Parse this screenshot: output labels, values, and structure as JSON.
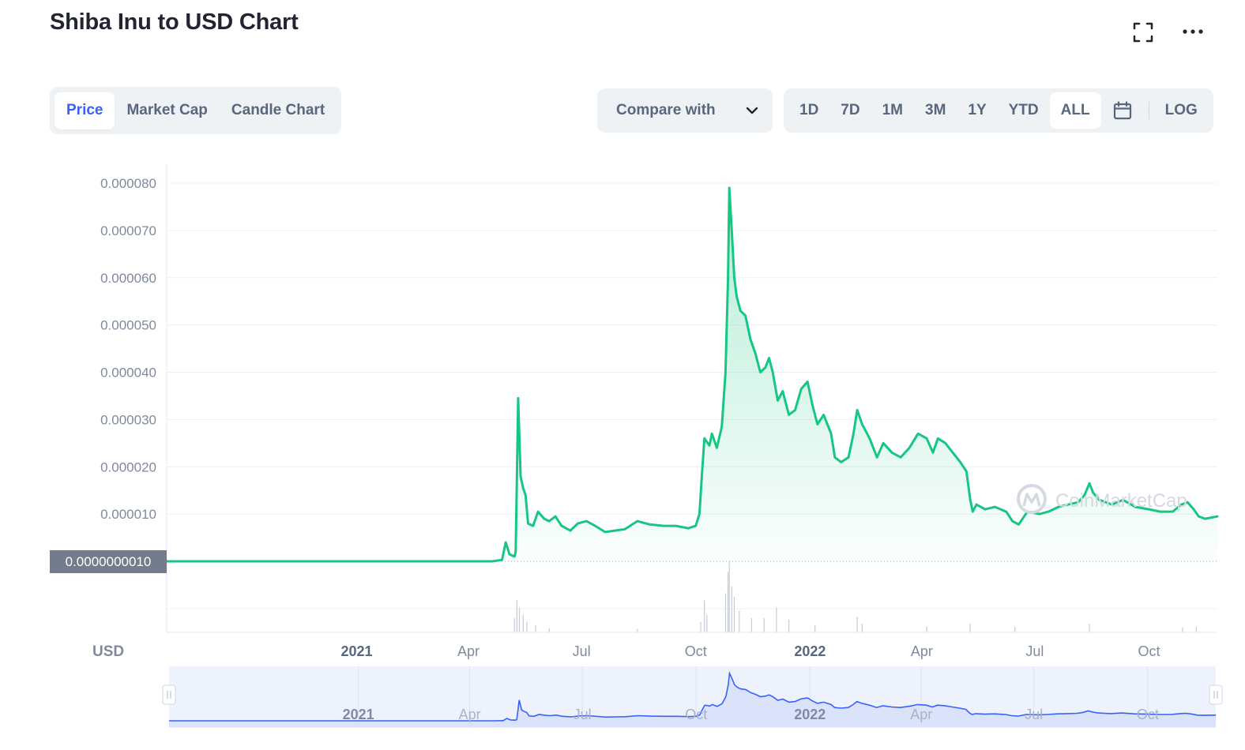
{
  "header": {
    "title": "Shiba Inu to USD Chart"
  },
  "toolbar": {
    "fullscreen_icon": "fullscreen-icon",
    "more_icon": "more-horizontal-icon",
    "type_tabs": [
      {
        "label": "Price",
        "active": true
      },
      {
        "label": "Market Cap",
        "active": false
      },
      {
        "label": "Candle Chart",
        "active": false
      }
    ],
    "compare_label": "Compare with",
    "compare_icon": "chevron-down-icon",
    "range_tabs": [
      {
        "label": "1D",
        "active": false
      },
      {
        "label": "7D",
        "active": false
      },
      {
        "label": "1M",
        "active": false
      },
      {
        "label": "3M",
        "active": false
      },
      {
        "label": "1Y",
        "active": false
      },
      {
        "label": "YTD",
        "active": false
      },
      {
        "label": "ALL",
        "active": true
      }
    ],
    "calendar_icon": "calendar-icon",
    "log_label": "LOG"
  },
  "chart_data": {
    "type": "area",
    "currency_label": "USD",
    "current_price_label": "0.0000000010",
    "watermark": "CoinMarketCap",
    "y_ticks": [
      "0.000080",
      "0.000070",
      "0.000060",
      "0.000050",
      "0.000040",
      "0.000030",
      "0.000020",
      "0.000010"
    ],
    "ylim": [
      0,
      8e-05
    ],
    "xlim": [
      "2020-08-01",
      "2022-11-25"
    ],
    "x_ticks": [
      {
        "label": "2021",
        "date": "2021-01-01",
        "year": true
      },
      {
        "label": "Apr",
        "date": "2021-04-01",
        "year": false
      },
      {
        "label": "Jul",
        "date": "2021-07-01",
        "year": false
      },
      {
        "label": "Oct",
        "date": "2021-10-01",
        "year": false
      },
      {
        "label": "2022",
        "date": "2022-01-01",
        "year": true
      },
      {
        "label": "Apr",
        "date": "2022-04-01",
        "year": false
      },
      {
        "label": "Jul",
        "date": "2022-07-01",
        "year": false
      },
      {
        "label": "Oct",
        "date": "2022-10-01",
        "year": false
      }
    ],
    "colors": {
      "line": "#16c784",
      "navigator_line": "#3861fb",
      "navigator_bg": "#eef2fd",
      "volume": "#c6cbd6"
    },
    "series": [
      {
        "values": [
          [
            "2020-08-01",
            0.0
          ],
          [
            "2021-04-20",
            1e-09
          ],
          [
            "2021-04-28",
            3e-07
          ],
          [
            "2021-05-01",
            4e-06
          ],
          [
            "2021-05-04",
            1.5e-06
          ],
          [
            "2021-05-08",
            1e-06
          ],
          [
            "2021-05-09",
            2e-06
          ],
          [
            "2021-05-10",
            1.75e-05
          ],
          [
            "2021-05-11",
            3.45e-05
          ],
          [
            "2021-05-12",
            2.6e-05
          ],
          [
            "2021-05-13",
            1.8e-05
          ],
          [
            "2021-05-15",
            1.55e-05
          ],
          [
            "2021-05-17",
            1.4e-05
          ],
          [
            "2021-05-19",
            8e-06
          ],
          [
            "2021-05-23",
            7.5e-06
          ],
          [
            "2021-05-27",
            1.05e-05
          ],
          [
            "2021-06-01",
            9e-06
          ],
          [
            "2021-06-05",
            8.5e-06
          ],
          [
            "2021-06-10",
            9.5e-06
          ],
          [
            "2021-06-15",
            7.5e-06
          ],
          [
            "2021-06-22",
            6.5e-06
          ],
          [
            "2021-06-28",
            8e-06
          ],
          [
            "2021-07-05",
            8.5e-06
          ],
          [
            "2021-07-12",
            7.5e-06
          ],
          [
            "2021-07-20",
            6.2e-06
          ],
          [
            "2021-07-28",
            6.5e-06
          ],
          [
            "2021-08-05",
            6.8e-06
          ],
          [
            "2021-08-15",
            8.5e-06
          ],
          [
            "2021-08-25",
            7.8e-06
          ],
          [
            "2021-09-05",
            7.5e-06
          ],
          [
            "2021-09-15",
            7.5e-06
          ],
          [
            "2021-09-25",
            7e-06
          ],
          [
            "2021-10-01",
            7.5e-06
          ],
          [
            "2021-10-04",
            1e-05
          ],
          [
            "2021-10-06",
            1.85e-05
          ],
          [
            "2021-10-08",
            2.6e-05
          ],
          [
            "2021-10-12",
            2.45e-05
          ],
          [
            "2021-10-14",
            2.7e-05
          ],
          [
            "2021-10-18",
            2.4e-05
          ],
          [
            "2021-10-22",
            2.85e-05
          ],
          [
            "2021-10-25",
            4e-05
          ],
          [
            "2021-10-27",
            6e-05
          ],
          [
            "2021-10-28",
            7.9e-05
          ],
          [
            "2021-10-30",
            7e-05
          ],
          [
            "2021-11-01",
            6e-05
          ],
          [
            "2021-11-03",
            5.6e-05
          ],
          [
            "2021-11-06",
            5.3e-05
          ],
          [
            "2021-11-10",
            5.2e-05
          ],
          [
            "2021-11-14",
            4.7e-05
          ],
          [
            "2021-11-18",
            4.4e-05
          ],
          [
            "2021-11-22",
            4e-05
          ],
          [
            "2021-11-26",
            4.1e-05
          ],
          [
            "2021-11-29",
            4.3e-05
          ],
          [
            "2021-12-02",
            4e-05
          ],
          [
            "2021-12-06",
            3.4e-05
          ],
          [
            "2021-12-10",
            3.6e-05
          ],
          [
            "2021-12-15",
            3.1e-05
          ],
          [
            "2021-12-20",
            3.2e-05
          ],
          [
            "2021-12-25",
            3.65e-05
          ],
          [
            "2021-12-30",
            3.8e-05
          ],
          [
            "2022-01-03",
            3.3e-05
          ],
          [
            "2022-01-07",
            2.9e-05
          ],
          [
            "2022-01-12",
            3.1e-05
          ],
          [
            "2022-01-18",
            2.7e-05
          ],
          [
            "2022-01-21",
            2.2e-05
          ],
          [
            "2022-01-26",
            2.1e-05
          ],
          [
            "2022-02-01",
            2.2e-05
          ],
          [
            "2022-02-05",
            2.7e-05
          ],
          [
            "2022-02-08",
            3.2e-05
          ],
          [
            "2022-02-12",
            2.9e-05
          ],
          [
            "2022-02-18",
            2.6e-05
          ],
          [
            "2022-02-24",
            2.2e-05
          ],
          [
            "2022-03-01",
            2.5e-05
          ],
          [
            "2022-03-08",
            2.3e-05
          ],
          [
            "2022-03-15",
            2.2e-05
          ],
          [
            "2022-03-22",
            2.4e-05
          ],
          [
            "2022-03-29",
            2.7e-05
          ],
          [
            "2022-04-05",
            2.6e-05
          ],
          [
            "2022-04-10",
            2.3e-05
          ],
          [
            "2022-04-14",
            2.6e-05
          ],
          [
            "2022-04-20",
            2.5e-05
          ],
          [
            "2022-04-26",
            2.3e-05
          ],
          [
            "2022-05-02",
            2.1e-05
          ],
          [
            "2022-05-07",
            1.9e-05
          ],
          [
            "2022-05-10",
            1.3e-05
          ],
          [
            "2022-05-12",
            1.05e-05
          ],
          [
            "2022-05-15",
            1.2e-05
          ],
          [
            "2022-05-22",
            1.1e-05
          ],
          [
            "2022-05-30",
            1.15e-05
          ],
          [
            "2022-06-08",
            1.05e-05
          ],
          [
            "2022-06-13",
            8.5e-06
          ],
          [
            "2022-06-18",
            7.8e-06
          ],
          [
            "2022-06-25",
            1.05e-05
          ],
          [
            "2022-07-05",
            1e-05
          ],
          [
            "2022-07-12",
            1.05e-05
          ],
          [
            "2022-07-20",
            1.15e-05
          ],
          [
            "2022-07-28",
            1.2e-05
          ],
          [
            "2022-08-05",
            1.25e-05
          ],
          [
            "2022-08-10",
            1.4e-05
          ],
          [
            "2022-08-14",
            1.65e-05
          ],
          [
            "2022-08-17",
            1.45e-05
          ],
          [
            "2022-08-22",
            1.3e-05
          ],
          [
            "2022-09-01",
            1.2e-05
          ],
          [
            "2022-09-10",
            1.3e-05
          ],
          [
            "2022-09-20",
            1.15e-05
          ],
          [
            "2022-10-01",
            1.1e-05
          ],
          [
            "2022-10-10",
            1.05e-05
          ],
          [
            "2022-10-20",
            1.05e-05
          ],
          [
            "2022-10-27",
            1.2e-05
          ],
          [
            "2022-11-01",
            1.25e-05
          ],
          [
            "2022-11-06",
            1.1e-05
          ],
          [
            "2022-11-10",
            9.5e-06
          ],
          [
            "2022-11-15",
            9e-06
          ],
          [
            "2022-11-25",
            9.5e-06
          ]
        ]
      }
    ],
    "volume": [
      [
        "2021-05-08",
        0.2
      ],
      [
        "2021-05-10",
        0.45
      ],
      [
        "2021-05-12",
        0.35
      ],
      [
        "2021-05-15",
        0.25
      ],
      [
        "2021-05-18",
        0.15
      ],
      [
        "2021-05-25",
        0.1
      ],
      [
        "2021-06-05",
        0.06
      ],
      [
        "2021-08-15",
        0.05
      ],
      [
        "2021-10-05",
        0.15
      ],
      [
        "2021-10-08",
        0.45
      ],
      [
        "2021-10-10",
        0.25
      ],
      [
        "2021-10-25",
        0.55
      ],
      [
        "2021-10-27",
        0.85
      ],
      [
        "2021-10-28",
        1.0
      ],
      [
        "2021-10-30",
        0.65
      ],
      [
        "2021-11-01",
        0.5
      ],
      [
        "2021-11-05",
        0.3
      ],
      [
        "2021-11-15",
        0.2
      ],
      [
        "2021-11-25",
        0.2
      ],
      [
        "2021-12-05",
        0.35
      ],
      [
        "2021-12-15",
        0.18
      ],
      [
        "2022-01-05",
        0.1
      ],
      [
        "2022-02-08",
        0.22
      ],
      [
        "2022-02-12",
        0.12
      ],
      [
        "2022-04-05",
        0.08
      ],
      [
        "2022-05-10",
        0.12
      ],
      [
        "2022-06-15",
        0.08
      ],
      [
        "2022-08-14",
        0.12
      ],
      [
        "2022-10-28",
        0.07
      ],
      [
        "2022-11-08",
        0.08
      ]
    ],
    "navigator": {
      "x_ticks": [
        {
          "label": "2021",
          "date": "2021-01-01",
          "year": true
        },
        {
          "label": "Apr",
          "date": "2021-04-01",
          "year": false
        },
        {
          "label": "Jul",
          "date": "2021-07-01",
          "year": false
        },
        {
          "label": "Oct",
          "date": "2021-10-01",
          "year": false
        },
        {
          "label": "2022",
          "date": "2022-01-01",
          "year": true
        },
        {
          "label": "Apr",
          "date": "2022-04-01",
          "year": false
        },
        {
          "label": "Jul",
          "date": "2022-07-01",
          "year": false
        },
        {
          "label": "Oct",
          "date": "2022-10-01",
          "year": false
        }
      ]
    }
  }
}
